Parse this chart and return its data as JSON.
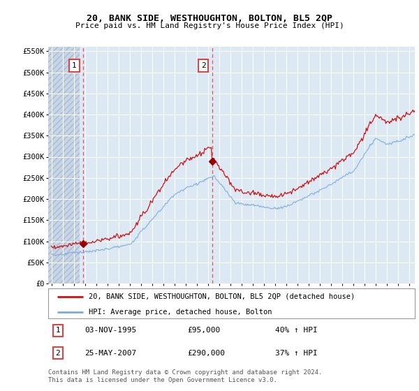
{
  "title": "20, BANK SIDE, WESTHOUGHTON, BOLTON, BL5 2QP",
  "subtitle": "Price paid vs. HM Land Registry's House Price Index (HPI)",
  "legend_line1": "20, BANK SIDE, WESTHOUGHTON, BOLTON, BL5 2QP (detached house)",
  "legend_line2": "HPI: Average price, detached house, Bolton",
  "sale1_date": "03-NOV-1995",
  "sale1_price": 95000,
  "sale1_label": "40% ↑ HPI",
  "sale1_x": 1995.84,
  "sale2_date": "25-MAY-2007",
  "sale2_price": 290000,
  "sale2_label": "37% ↑ HPI",
  "sale2_x": 2007.38,
  "footnote": "Contains HM Land Registry data © Crown copyright and database right 2024.\nThis data is licensed under the Open Government Licence v3.0.",
  "hpi_color": "#7aabdb",
  "price_color": "#cc1111",
  "sale_marker_color": "#990000",
  "vline_color": "#dd4444",
  "ylim": [
    0,
    560000
  ],
  "xlim": [
    1992.7,
    2025.5
  ],
  "yticks": [
    0,
    50000,
    100000,
    150000,
    200000,
    250000,
    300000,
    350000,
    400000,
    450000,
    500000,
    550000
  ],
  "ytick_labels": [
    "£0",
    "£50K",
    "£100K",
    "£150K",
    "£200K",
    "£250K",
    "£300K",
    "£350K",
    "£400K",
    "£450K",
    "£500K",
    "£550K"
  ],
  "background_plot": "#dde8f5",
  "background_hatch_color": "#c8d5e8",
  "grid_color": "#ffffff",
  "hatch_end": 1995.5
}
